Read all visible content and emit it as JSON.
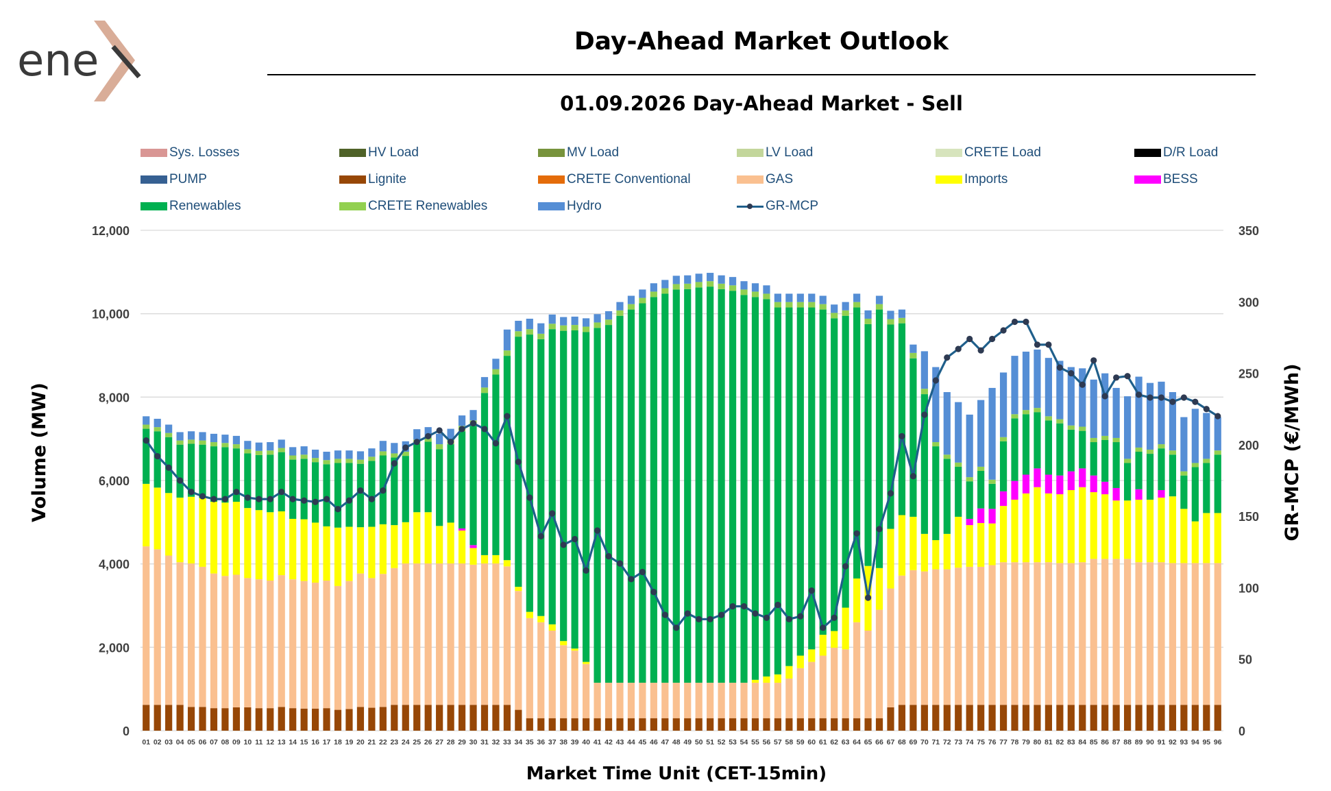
{
  "header": {
    "logo_text": "enex",
    "title": "Day-Ahead Market Outlook",
    "subtitle": "01.09.2026  Day-Ahead Market - Sell"
  },
  "chart_data": {
    "type": "bar",
    "stacked": true,
    "title": "01.09.2026  Day-Ahead Market - Sell",
    "xlabel": "Market Time Unit (CET-15min)",
    "ylabel": "Volume (MW)",
    "y2label": "GR-MCP (€/MWh)",
    "ylim": [
      0,
      12000
    ],
    "y2lim": [
      0,
      350
    ],
    "y_ticks": [
      "0",
      "2,000",
      "4,000",
      "6,000",
      "8,000",
      "10,000",
      "12,000"
    ],
    "y2_ticks": [
      "0",
      "50",
      "100",
      "150",
      "200",
      "250",
      "300",
      "350"
    ],
    "grid": true,
    "legend_position": "top",
    "categories": [
      "01",
      "02",
      "03",
      "04",
      "05",
      "06",
      "07",
      "08",
      "09",
      "10",
      "11",
      "12",
      "13",
      "14",
      "15",
      "16",
      "17",
      "18",
      "19",
      "20",
      "21",
      "22",
      "23",
      "24",
      "25",
      "26",
      "27",
      "28",
      "29",
      "30",
      "31",
      "32",
      "33",
      "34",
      "35",
      "36",
      "37",
      "38",
      "39",
      "40",
      "41",
      "42",
      "43",
      "44",
      "45",
      "46",
      "47",
      "48",
      "49",
      "50",
      "51",
      "52",
      "53",
      "54",
      "55",
      "56",
      "57",
      "58",
      "59",
      "60",
      "61",
      "62",
      "63",
      "64",
      "65",
      "66",
      "67",
      "68",
      "69",
      "70",
      "71",
      "72",
      "73",
      "74",
      "75",
      "76",
      "77",
      "78",
      "79",
      "80",
      "81",
      "82",
      "83",
      "84",
      "85",
      "86",
      "87",
      "88",
      "89",
      "90",
      "91",
      "92",
      "93",
      "94",
      "95",
      "96"
    ],
    "legend": [
      {
        "name": "Sys. Losses",
        "color": "#d99694",
        "kind": "bar"
      },
      {
        "name": "HV Load",
        "color": "#4f6228",
        "kind": "bar"
      },
      {
        "name": "MV Load",
        "color": "#77933c",
        "kind": "bar"
      },
      {
        "name": "LV Load",
        "color": "#c3d69b",
        "kind": "bar"
      },
      {
        "name": "CRETE Load",
        "color": "#d7e4bd",
        "kind": "bar"
      },
      {
        "name": "D/R Load",
        "color": "#000000",
        "kind": "bar"
      },
      {
        "name": "PUMP",
        "color": "#366092",
        "kind": "bar"
      },
      {
        "name": "Lignite",
        "color": "#974706",
        "kind": "bar"
      },
      {
        "name": "CRETE Conventional",
        "color": "#e46c0a",
        "kind": "bar"
      },
      {
        "name": "GAS",
        "color": "#fac090",
        "kind": "bar"
      },
      {
        "name": "Imports",
        "color": "#ffff00",
        "kind": "bar"
      },
      {
        "name": "BESS",
        "color": "#ff00ff",
        "kind": "bar"
      },
      {
        "name": "Renewables",
        "color": "#00b050",
        "kind": "bar"
      },
      {
        "name": "CRETE Renewables",
        "color": "#92d050",
        "kind": "bar"
      },
      {
        "name": "Hydro",
        "color": "#558ed5",
        "kind": "bar"
      },
      {
        "name": "GR-MCP",
        "color": "#1f5f8b",
        "kind": "line"
      }
    ],
    "series": [
      {
        "name": "Lignite",
        "color": "#974706",
        "values": [
          620,
          620,
          620,
          620,
          570,
          570,
          540,
          540,
          560,
          560,
          540,
          540,
          570,
          540,
          530,
          530,
          540,
          500,
          520,
          570,
          550,
          570,
          620,
          620,
          620,
          620,
          620,
          620,
          620,
          620,
          620,
          620,
          620,
          500,
          300,
          300,
          300,
          300,
          300,
          300,
          300,
          300,
          300,
          300,
          300,
          300,
          300,
          300,
          300,
          300,
          300,
          300,
          300,
          300,
          300,
          300,
          300,
          300,
          300,
          300,
          300,
          300,
          300,
          300,
          300,
          300,
          560,
          620,
          620,
          620,
          620,
          620,
          620,
          620,
          620,
          620,
          620,
          620,
          620,
          620,
          620,
          620,
          620,
          620,
          620,
          620,
          620,
          620,
          620,
          620,
          620,
          620,
          620,
          620,
          620,
          620
        ]
      },
      {
        "name": "GAS",
        "color": "#fac090",
        "values": [
          3800,
          3730,
          3580,
          3420,
          3440,
          3360,
          3230,
          3170,
          3180,
          3100,
          3090,
          3060,
          3160,
          3090,
          3060,
          3020,
          3060,
          2970,
          3070,
          3200,
          3110,
          3190,
          3280,
          3390,
          3390,
          3390,
          3390,
          3390,
          3390,
          3360,
          3390,
          3390,
          3320,
          2850,
          2400,
          2300,
          2100,
          1750,
          1620,
          1300,
          850,
          850,
          850,
          850,
          850,
          850,
          850,
          850,
          850,
          850,
          850,
          850,
          850,
          850,
          850,
          850,
          850,
          950,
          1200,
          1350,
          1500,
          1690,
          1650,
          2300,
          2100,
          2600,
          2850,
          3100,
          3230,
          3200,
          3250,
          3250,
          3290,
          3310,
          3310,
          3350,
          3420,
          3420,
          3420,
          3420,
          3420,
          3400,
          3400,
          3420,
          3500,
          3500,
          3500,
          3500,
          3420,
          3420,
          3420,
          3400,
          3400,
          3400,
          3400,
          3400
        ]
      },
      {
        "name": "Imports",
        "color": "#ffff00",
        "values": [
          1500,
          1480,
          1500,
          1550,
          1600,
          1650,
          1720,
          1760,
          1750,
          1680,
          1660,
          1640,
          1530,
          1450,
          1480,
          1440,
          1300,
          1400,
          1300,
          1110,
          1230,
          1190,
          1030,
          990,
          1230,
          1230,
          900,
          980,
          790,
          400,
          200,
          200,
          150,
          100,
          150,
          150,
          150,
          100,
          50,
          50,
          0,
          0,
          0,
          0,
          0,
          0,
          0,
          0,
          0,
          0,
          0,
          0,
          0,
          0,
          70,
          150,
          200,
          300,
          300,
          300,
          500,
          400,
          1000,
          1050,
          1550,
          1000,
          1430,
          1450,
          1280,
          900,
          700,
          850,
          1220,
          1000,
          1050,
          1000,
          1350,
          1500,
          1650,
          1800,
          1650,
          1650,
          1750,
          1800,
          1600,
          1550,
          1400,
          1400,
          1500,
          1500,
          1550,
          1600,
          1300,
          1000,
          1200,
          1200
        ]
      },
      {
        "name": "BESS",
        "color": "#ff00ff",
        "values": [
          0,
          0,
          0,
          0,
          0,
          0,
          0,
          0,
          0,
          0,
          0,
          0,
          0,
          0,
          0,
          0,
          0,
          0,
          0,
          0,
          0,
          0,
          0,
          0,
          0,
          0,
          0,
          0,
          50,
          70,
          0,
          0,
          0,
          0,
          0,
          0,
          0,
          0,
          0,
          0,
          0,
          0,
          0,
          0,
          0,
          0,
          0,
          0,
          0,
          0,
          0,
          0,
          0,
          0,
          0,
          0,
          0,
          0,
          0,
          0,
          0,
          0,
          0,
          0,
          0,
          0,
          0,
          0,
          0,
          0,
          0,
          0,
          0,
          150,
          350,
          350,
          350,
          450,
          450,
          450,
          450,
          450,
          450,
          450,
          400,
          300,
          300,
          0,
          250,
          0,
          180,
          0,
          0,
          0,
          0,
          0
        ]
      },
      {
        "name": "Renewables",
        "color": "#00b050",
        "values": [
          1320,
          1350,
          1340,
          1270,
          1270,
          1280,
          1330,
          1330,
          1280,
          1310,
          1320,
          1380,
          1420,
          1420,
          1450,
          1450,
          1490,
          1550,
          1530,
          1520,
          1580,
          1650,
          1620,
          1590,
          1640,
          1690,
          1840,
          1880,
          2330,
          2860,
          3890,
          4330,
          4900,
          6000,
          6650,
          6640,
          7080,
          7440,
          7630,
          7910,
          8510,
          8580,
          8800,
          8950,
          9100,
          9250,
          9330,
          9430,
          9440,
          9480,
          9500,
          9440,
          9400,
          9300,
          9180,
          9050,
          8800,
          8600,
          8350,
          8200,
          7800,
          7500,
          7000,
          6500,
          5800,
          6200,
          4900,
          4600,
          3800,
          3350,
          2250,
          1800,
          1200,
          900,
          900,
          600,
          1200,
          1500,
          1450,
          1350,
          1300,
          1250,
          1000,
          900,
          800,
          1000,
          1100,
          900,
          900,
          1100,
          1000,
          1000,
          800,
          1300,
          1200,
          1400
        ]
      },
      {
        "name": "CRETE Renewables",
        "color": "#92d050",
        "values": [
          100,
          100,
          100,
          100,
          100,
          100,
          100,
          100,
          100,
          100,
          100,
          100,
          100,
          100,
          100,
          100,
          100,
          100,
          100,
          100,
          100,
          100,
          100,
          100,
          100,
          100,
          120,
          120,
          130,
          130,
          130,
          130,
          130,
          130,
          130,
          130,
          130,
          130,
          130,
          130,
          130,
          130,
          130,
          130,
          130,
          130,
          130,
          130,
          130,
          130,
          130,
          130,
          130,
          130,
          130,
          130,
          130,
          130,
          130,
          130,
          130,
          130,
          130,
          130,
          130,
          130,
          130,
          130,
          130,
          130,
          100,
          100,
          100,
          100,
          100,
          100,
          100,
          100,
          100,
          100,
          100,
          100,
          100,
          100,
          100,
          100,
          100,
          100,
          100,
          100,
          100,
          100,
          100,
          100,
          100,
          100
        ]
      },
      {
        "name": "Hydro",
        "color": "#558ed5",
        "values": [
          200,
          200,
          200,
          200,
          200,
          200,
          200,
          200,
          200,
          200,
          200,
          200,
          200,
          200,
          200,
          200,
          200,
          200,
          200,
          200,
          200,
          250,
          250,
          250,
          250,
          250,
          250,
          250,
          250,
          250,
          250,
          250,
          500,
          250,
          250,
          250,
          220,
          200,
          200,
          200,
          200,
          200,
          200,
          200,
          200,
          200,
          200,
          200,
          200,
          200,
          200,
          200,
          200,
          200,
          200,
          200,
          200,
          200,
          200,
          200,
          200,
          200,
          200,
          200,
          200,
          200,
          200,
          200,
          200,
          900,
          1800,
          1500,
          1450,
          1500,
          1600,
          2200,
          1550,
          1400,
          1400,
          1400,
          1400,
          1400,
          1400,
          1400,
          1400,
          1500,
          1200,
          1500,
          1700,
          1600,
          1500,
          1400,
          1300,
          1300,
          1100,
          800
        ]
      }
    ],
    "line": {
      "name": "GR-MCP",
      "color": "#1f5f8b",
      "axis": "y2",
      "values": [
        203,
        192,
        184,
        175,
        167,
        164,
        162,
        162,
        167,
        163,
        162,
        162,
        167,
        162,
        161,
        160,
        162,
        155,
        161,
        168,
        162,
        168,
        187,
        198,
        202,
        206,
        210,
        202,
        211,
        215,
        211,
        201,
        220,
        188,
        163,
        136,
        152,
        130,
        134,
        112,
        140,
        122,
        117,
        106,
        111,
        97,
        81,
        72,
        82,
        78,
        78,
        81,
        87,
        87,
        82,
        79,
        88,
        78,
        80,
        98,
        72,
        79,
        115,
        138,
        93,
        141,
        166,
        206,
        178,
        221,
        245,
        261,
        267,
        274,
        266,
        274,
        280,
        286,
        286,
        270,
        270,
        254,
        250,
        242,
        259,
        234,
        247,
        248,
        235,
        233,
        233,
        230,
        233,
        230,
        225,
        220
      ]
    }
  }
}
